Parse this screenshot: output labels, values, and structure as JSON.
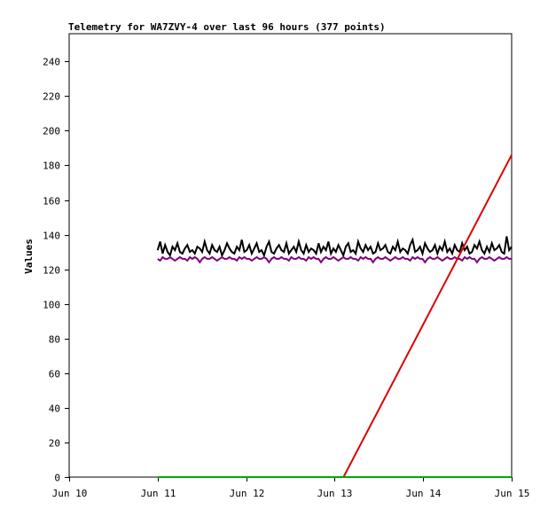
{
  "chart_data": {
    "type": "line",
    "title": "Telemetry for WA7ZVY-4 over last 96 hours (377 points)",
    "xlabel": "",
    "ylabel": "Values",
    "x_ticks": [
      "Jun 10",
      "Jun 11",
      "Jun 12",
      "Jun 13",
      "Jun 14",
      "Jun 15"
    ],
    "xlim": [
      "Jun 10",
      "Jun 15"
    ],
    "y_ticks": [
      0,
      20,
      40,
      60,
      80,
      100,
      120,
      140,
      160,
      180,
      200,
      220,
      240
    ],
    "ylim": [
      0,
      256
    ],
    "grid": false,
    "legend": "none",
    "series": [
      {
        "color": "#000000",
        "x_start": "Jun 11",
        "x_end": "Jun 15",
        "values": [
          131,
          136,
          129,
          134,
          130,
          128,
          133,
          131,
          135,
          130,
          129,
          132,
          134,
          130,
          131,
          129,
          133,
          132,
          130,
          136,
          131,
          129,
          134,
          131,
          130,
          133,
          128,
          131,
          135,
          132,
          130,
          129,
          133,
          131,
          137,
          130,
          131,
          134,
          129,
          132,
          135,
          130,
          131,
          128,
          133,
          136,
          130,
          129,
          132,
          134,
          131,
          130,
          135,
          129,
          131,
          133,
          130,
          136,
          131,
          129,
          134,
          130,
          132,
          131,
          129,
          135,
          130,
          133,
          131,
          136,
          129,
          132,
          130,
          134,
          131,
          128,
          133,
          135,
          130,
          131,
          129,
          136,
          132,
          130,
          134,
          131,
          133,
          129,
          130,
          135,
          131,
          132,
          134,
          130,
          129,
          133,
          131,
          136,
          130,
          132,
          131,
          129,
          134,
          137,
          130,
          131,
          133,
          129,
          135,
          132,
          130,
          131,
          134,
          129,
          133,
          131,
          136,
          130,
          132,
          129,
          134,
          131,
          130,
          135,
          131,
          133,
          129,
          130,
          134,
          132,
          136,
          131,
          129,
          133,
          130,
          135,
          131,
          132,
          134,
          130,
          129,
          139,
          131,
          133
        ]
      },
      {
        "color": "#800080",
        "x_start": "Jun 11",
        "x_end": "Jun 15",
        "values": [
          126,
          125,
          127,
          126,
          126,
          127,
          126,
          125,
          126,
          127,
          126,
          126,
          125,
          127,
          126,
          127,
          126,
          124,
          126,
          127,
          126,
          126,
          127,
          126,
          125,
          126,
          127,
          126,
          126,
          127,
          126,
          126,
          125,
          127,
          126,
          127,
          126,
          126,
          125,
          126,
          127,
          126,
          126,
          127,
          126,
          124,
          126,
          127,
          126,
          126,
          127,
          126,
          126,
          125,
          127,
          126,
          126,
          127,
          126,
          126,
          125,
          127,
          126,
          127,
          126,
          126,
          124,
          126,
          127,
          126,
          126,
          127,
          126,
          125,
          126,
          127,
          126,
          126,
          127,
          126,
          126,
          125,
          127,
          126,
          127,
          126,
          126,
          124,
          126,
          127,
          126,
          126,
          127,
          126,
          125,
          126,
          127,
          126,
          126,
          127,
          126,
          126,
          125,
          127,
          126,
          127,
          126,
          126,
          124,
          126,
          127,
          126,
          126,
          127,
          126,
          125,
          126,
          127,
          126,
          126,
          127,
          126,
          126,
          125,
          127,
          126,
          127,
          126,
          126,
          124,
          126,
          127,
          126,
          126,
          127,
          126,
          125,
          126,
          127,
          126,
          126,
          127,
          126,
          126
        ]
      },
      {
        "color": "#dd0000",
        "x": [
          "Jun 13.1",
          "Jun 15"
        ],
        "y": [
          0,
          186
        ]
      },
      {
        "color": "#00aa00",
        "x": [
          "Jun 11",
          "Jun 15"
        ],
        "y": [
          0,
          0
        ]
      }
    ]
  }
}
